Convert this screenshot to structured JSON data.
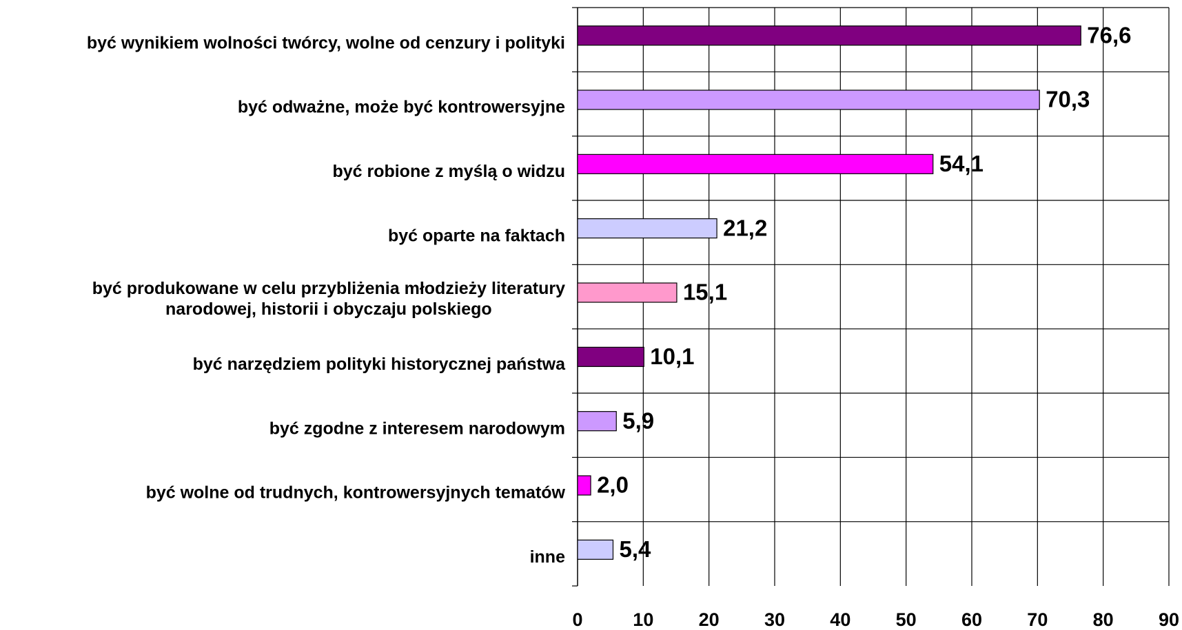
{
  "chart_data": {
    "type": "hbar",
    "categories": [
      "być wynikiem wolności twórcy, wolne od cenzury i polityki",
      "być odważne, może być kontrowersyjne",
      "być robione z myślą o widzu",
      "być oparte na faktach",
      "być produkowane w celu przybliżenia młodzieży literatury\nnarodowej, historii i obyczaju polskiego",
      "być narzędziem polityki historycznej państwa",
      "być zgodne z interesem narodowym",
      "być wolne od trudnych, kontrowersyjnych tematów",
      "inne"
    ],
    "values": [
      76.6,
      70.3,
      54.1,
      21.2,
      15.1,
      10.1,
      5.9,
      2.0,
      5.4
    ],
    "value_labels": [
      "76,6",
      "70,3",
      "54,1",
      "21,2",
      "15,1",
      "10,1",
      "5,9",
      "2,0",
      "5,4"
    ],
    "colors": [
      "#800080",
      "#cc99ff",
      "#ff00ff",
      "#ccccff",
      "#ff99cc",
      "#800080",
      "#cc99ff",
      "#ff00ff",
      "#ccccff"
    ],
    "xlim": [
      0,
      90
    ],
    "xticks": [
      0,
      10,
      20,
      30,
      40,
      50,
      60,
      70,
      80,
      90
    ],
    "grid": true
  }
}
